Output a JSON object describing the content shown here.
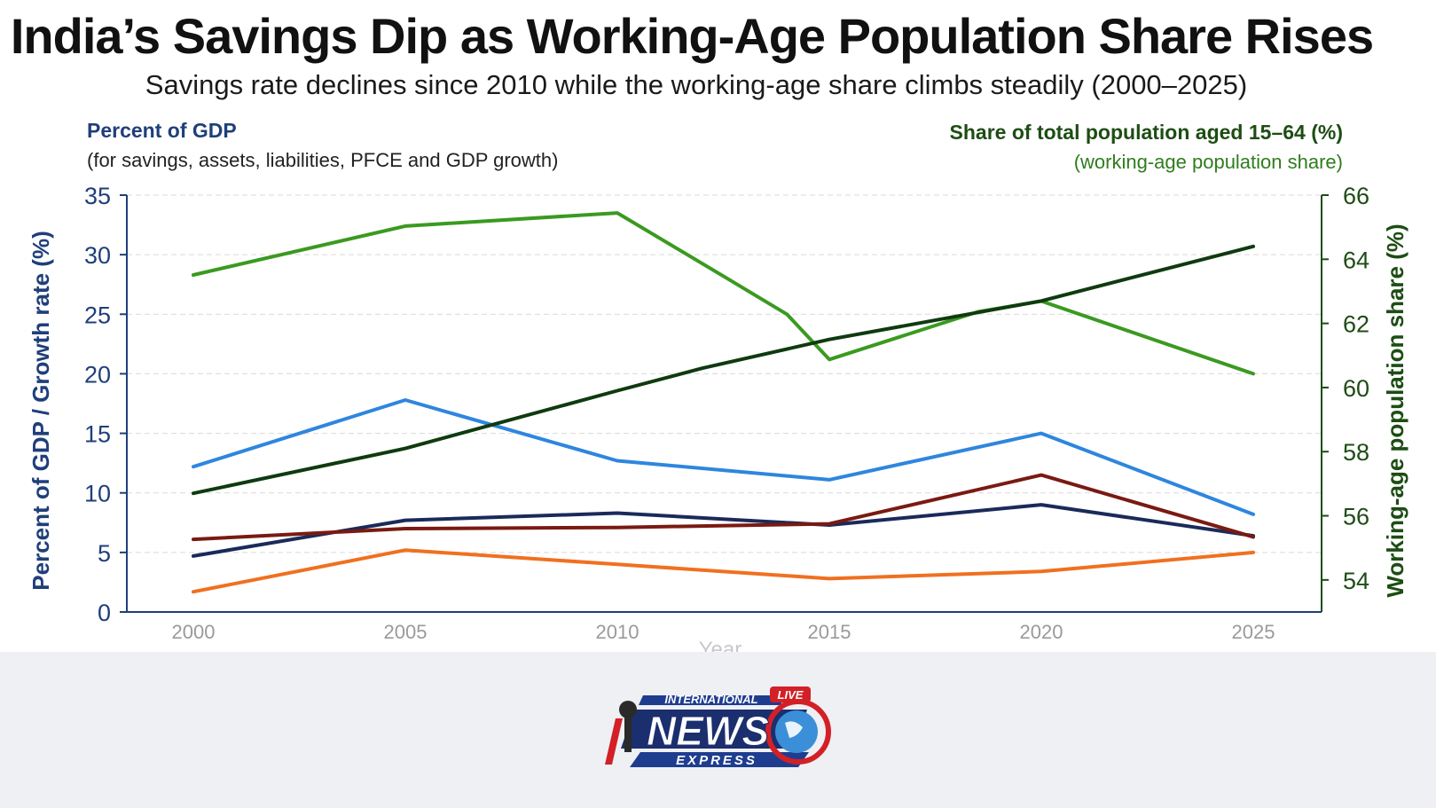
{
  "title": "India’s Savings Dip as Working-Age Population Share Rises",
  "subtitle": "Savings rate declines since 2010 while the working-age share climbs steadily (2000–2025)",
  "left_axis_note": {
    "heading": "Percent of GDP",
    "detail": "(for savings, assets, liabilities, PFCE and GDP growth)"
  },
  "right_axis_note": {
    "heading": "Share of total population aged 15–64 (%)",
    "detail": "(working-age population share)"
  },
  "logo": {
    "top_text": "INTERNATIONAL",
    "badge": "LIVE",
    "main_text": "NEWS",
    "bottom_text": "EXPRESS"
  },
  "colors": {
    "left_axis": "#1f3f7a",
    "right_axis": "#1d4d14",
    "grid": "#d9d9d9"
  },
  "chart_data": {
    "type": "line",
    "title": "India’s Savings Dip as Working-Age Population Share Rises",
    "subtitle": "Savings rate declines since 2010 while the working-age share climbs steadily (2000–2025)",
    "xlabel": "Year",
    "ylabel": "Percent of GDP / Growth rate (%)",
    "y2label": "Working-age population share (%)",
    "xlim": [
      2000,
      2025
    ],
    "ylim": [
      0,
      35
    ],
    "y2lim": [
      53,
      66
    ],
    "x_ticks": [
      "2000",
      "2005",
      "2010",
      "2015",
      "2020",
      "2025"
    ],
    "y_ticks": [
      "0",
      "5",
      "10",
      "15",
      "20",
      "25",
      "30",
      "35"
    ],
    "y2_ticks": [
      "54",
      "56",
      "58",
      "60",
      "62",
      "64",
      "66"
    ],
    "grid": true,
    "legend": "none",
    "series": [
      {
        "axis": "left",
        "color": "#2e86de",
        "x": [
          2000,
          2005,
          2010,
          2015,
          2020,
          2025
        ],
        "y": [
          12.2,
          17.8,
          12.7,
          11.1,
          15.0,
          8.2
        ]
      },
      {
        "axis": "left",
        "color": "#1a2a5a",
        "x": [
          2000,
          2005,
          2010,
          2015,
          2020,
          2025
        ],
        "y": [
          4.7,
          7.7,
          8.3,
          7.3,
          9.0,
          6.4
        ]
      },
      {
        "axis": "left",
        "color": "#7a1a12",
        "x": [
          2000,
          2005,
          2010,
          2015,
          2020,
          2025
        ],
        "y": [
          6.1,
          7.0,
          7.1,
          7.4,
          11.5,
          6.3
        ]
      },
      {
        "axis": "left",
        "color": "#f07020",
        "x": [
          2000,
          2005,
          2010,
          2015,
          2020,
          2025
        ],
        "y": [
          1.7,
          5.2,
          4.0,
          2.8,
          3.4,
          5.0
        ]
      },
      {
        "axis": "left",
        "color": "#3a9a20",
        "x": [
          2000,
          2005,
          2010,
          2012.5,
          2014,
          2015,
          2018.5,
          2020,
          2025
        ],
        "y": [
          28.3,
          32.4,
          33.5,
          28.2,
          25.0,
          21.2,
          25.2,
          26.1,
          20.0
        ]
      },
      {
        "axis": "right",
        "color": "#0f3a10",
        "x": [
          2000,
          2005,
          2010,
          2012,
          2015,
          2020,
          2025
        ],
        "y": [
          56.7,
          58.1,
          59.9,
          60.6,
          61.5,
          62.7,
          64.4
        ]
      }
    ]
  }
}
